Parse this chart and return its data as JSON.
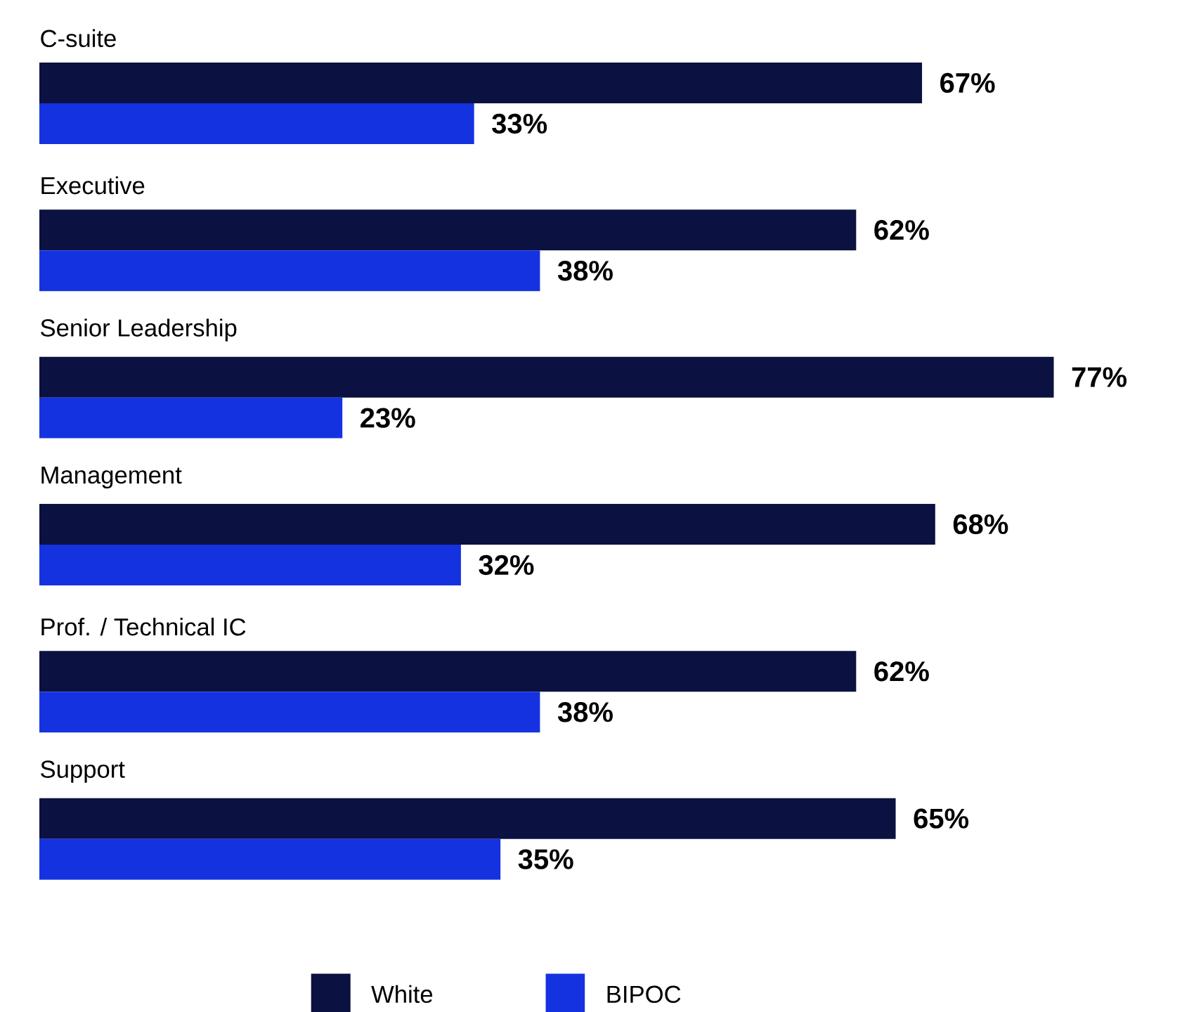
{
  "chart_data": {
    "type": "bar",
    "orientation": "horizontal",
    "categories": [
      "C-suite",
      "Executive",
      "Senior Leadership",
      "Management",
      "Prof. / Technical IC",
      "Support"
    ],
    "series": [
      {
        "name": "White",
        "color": "#0b1140",
        "values": [
          67,
          62,
          77,
          68,
          62,
          65
        ],
        "value_labels": [
          "67%",
          "62%",
          "77%",
          "68%",
          "62%",
          "65%"
        ]
      },
      {
        "name": "BIPOC",
        "color": "#1532e0",
        "values": [
          33,
          38,
          23,
          32,
          38,
          35
        ],
        "value_labels": [
          "33%",
          "38%",
          "23%",
          "32%",
          "38%",
          "35%"
        ]
      }
    ],
    "legend": "bottom"
  }
}
